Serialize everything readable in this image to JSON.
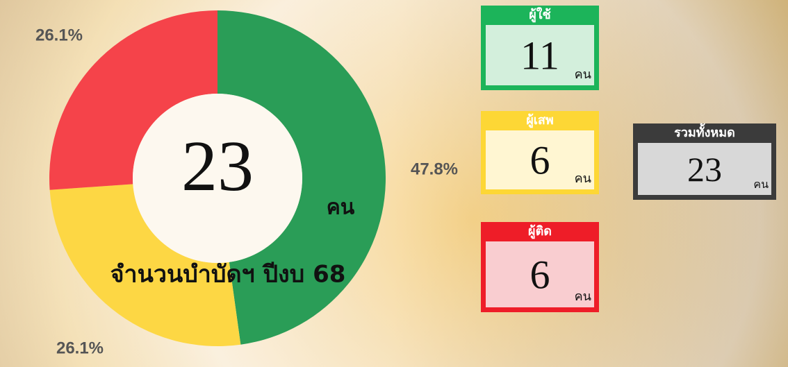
{
  "chart_data": {
    "type": "pie",
    "donut": true,
    "title": "จำนวนบำบัดฯ ปีงบ 68",
    "center_value": "23",
    "center_unit": "คน",
    "values": [
      47.8,
      26.1,
      26.1
    ],
    "value_labels": [
      "47.8%",
      "26.1%",
      "26.1%"
    ],
    "colors": [
      "#2a9d57",
      "#fdd744",
      "#f5434a"
    ]
  },
  "cards": [
    {
      "title": "ผู้ใช้",
      "value": "11",
      "unit": "คน"
    },
    {
      "title": "ผู้เสพ",
      "value": "6",
      "unit": "คน"
    },
    {
      "title": "ผู้ติด",
      "value": "6",
      "unit": "คน"
    },
    {
      "title": "รวมทั้งหมด",
      "value": "23",
      "unit": "คน"
    }
  ]
}
